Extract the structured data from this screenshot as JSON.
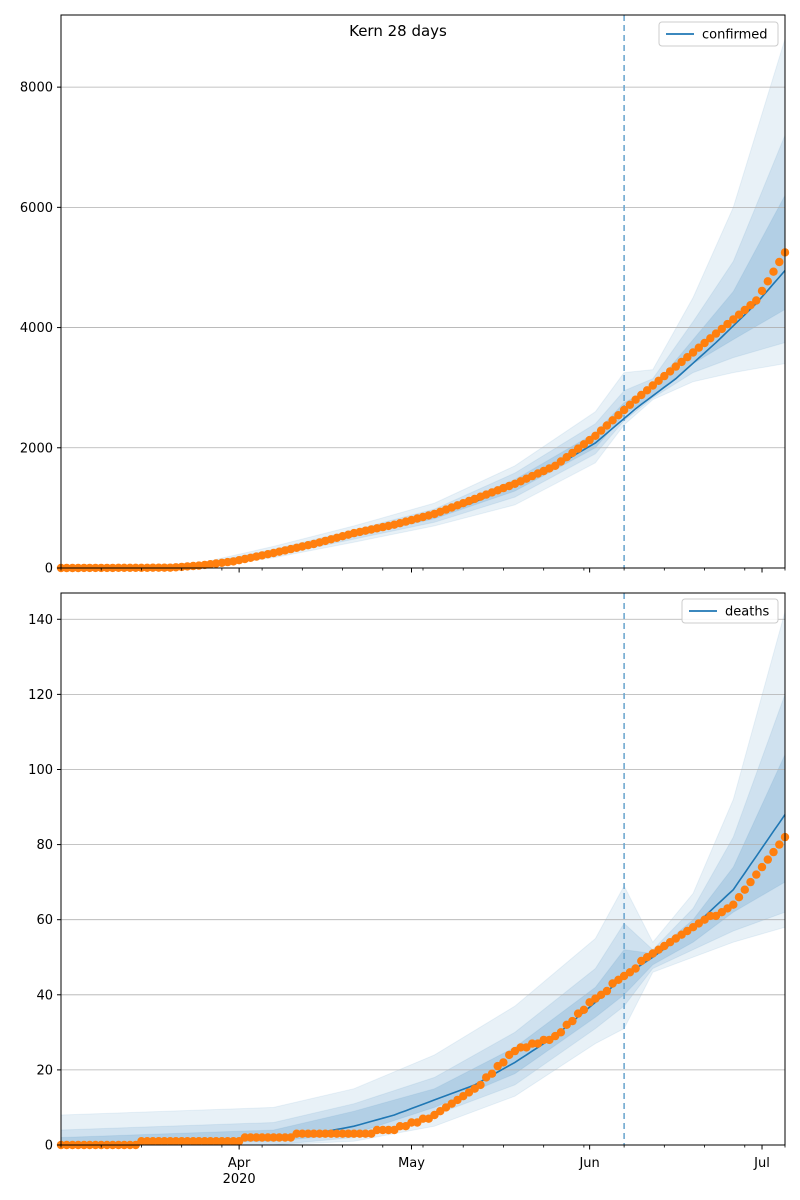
{
  "chart_data": [
    {
      "type": "line",
      "title": "Kern 28 days",
      "x_start": "2020-03-01",
      "x_end": "2020-07-05",
      "ylim": [
        0,
        9200
      ],
      "yticks": [
        0,
        2000,
        4000,
        6000,
        8000
      ],
      "grid": "y",
      "legend_position": "top-right",
      "forecast_start": "2020-06-07",
      "colors": {
        "model": "#1f77b4",
        "observed": "#ff7f0e",
        "band": "#1f77b4"
      },
      "series": [
        {
          "name": "confirmed",
          "kind": "model",
          "points": [
            [
              "2020-03-01",
              0
            ],
            [
              "2020-03-20",
              5
            ],
            [
              "2020-03-25",
              40
            ],
            [
              "2020-03-31",
              110
            ],
            [
              "2020-04-07",
              250
            ],
            [
              "2020-04-14",
              380
            ],
            [
              "2020-04-21",
              550
            ],
            [
              "2020-04-28",
              690
            ],
            [
              "2020-05-05",
              870
            ],
            [
              "2020-05-12",
              1100
            ],
            [
              "2020-05-19",
              1380
            ],
            [
              "2020-05-26",
              1690
            ],
            [
              "2020-06-02",
              2080
            ],
            [
              "2020-06-09",
              2650
            ],
            [
              "2020-06-16",
              3150
            ],
            [
              "2020-06-23",
              3750
            ],
            [
              "2020-06-30",
              4400
            ],
            [
              "2020-07-05",
              4950
            ]
          ]
        },
        {
          "kind": "observed",
          "points": [
            [
              "2020-03-01",
              0
            ],
            [
              "2020-03-20",
              5
            ],
            [
              "2020-03-25",
              40
            ],
            [
              "2020-03-31",
              110
            ],
            [
              "2020-04-07",
              250
            ],
            [
              "2020-04-14",
              400
            ],
            [
              "2020-04-21",
              580
            ],
            [
              "2020-04-28",
              720
            ],
            [
              "2020-05-05",
              900
            ],
            [
              "2020-05-12",
              1150
            ],
            [
              "2020-05-19",
              1400
            ],
            [
              "2020-05-26",
              1700
            ],
            [
              "2020-06-02",
              2200
            ],
            [
              "2020-06-09",
              2800
            ],
            [
              "2020-06-16",
              3350
            ],
            [
              "2020-06-23",
              3900
            ],
            [
              "2020-06-30",
              4450
            ],
            [
              "2020-07-05",
              5250
            ]
          ]
        }
      ],
      "bands": [
        {
          "level": "outer",
          "lower": [
            [
              "2020-03-01",
              0
            ],
            [
              "2020-03-25",
              15
            ],
            [
              "2020-04-07",
              170
            ],
            [
              "2020-04-21",
              430
            ],
            [
              "2020-05-05",
              700
            ],
            [
              "2020-05-19",
              1050
            ],
            [
              "2020-06-02",
              1750
            ],
            [
              "2020-06-07",
              2380
            ],
            [
              "2020-06-12",
              2800
            ],
            [
              "2020-06-19",
              3100
            ],
            [
              "2020-06-26",
              3250
            ],
            [
              "2020-07-05",
              3400
            ]
          ],
          "upper": [
            [
              "2020-03-01",
              10
            ],
            [
              "2020-03-25",
              80
            ],
            [
              "2020-04-07",
              360
            ],
            [
              "2020-04-21",
              700
            ],
            [
              "2020-05-05",
              1080
            ],
            [
              "2020-05-19",
              1700
            ],
            [
              "2020-06-02",
              2600
            ],
            [
              "2020-06-07",
              3250
            ],
            [
              "2020-06-12",
              3300
            ],
            [
              "2020-06-19",
              4500
            ],
            [
              "2020-06-26",
              6000
            ],
            [
              "2020-07-05",
              8800
            ]
          ]
        },
        {
          "level": "middle",
          "lower": [
            [
              "2020-03-01",
              0
            ],
            [
              "2020-03-25",
              25
            ],
            [
              "2020-04-07",
              200
            ],
            [
              "2020-04-21",
              480
            ],
            [
              "2020-05-05",
              760
            ],
            [
              "2020-05-19",
              1180
            ],
            [
              "2020-06-02",
              1900
            ],
            [
              "2020-06-07",
              2450
            ],
            [
              "2020-06-12",
              2830
            ],
            [
              "2020-06-19",
              3250
            ],
            [
              "2020-06-26",
              3500
            ],
            [
              "2020-07-05",
              3750
            ]
          ],
          "upper": [
            [
              "2020-03-01",
              5
            ],
            [
              "2020-03-25",
              60
            ],
            [
              "2020-04-07",
              310
            ],
            [
              "2020-04-21",
              630
            ],
            [
              "2020-05-05",
              980
            ],
            [
              "2020-05-19",
              1580
            ],
            [
              "2020-06-02",
              2400
            ],
            [
              "2020-06-07",
              2950
            ],
            [
              "2020-06-12",
              3150
            ],
            [
              "2020-06-19",
              4100
            ],
            [
              "2020-06-26",
              5100
            ],
            [
              "2020-07-05",
              7200
            ]
          ]
        },
        {
          "level": "inner",
          "lower": [
            [
              "2020-03-01",
              0
            ],
            [
              "2020-03-25",
              32
            ],
            [
              "2020-04-07",
              225
            ],
            [
              "2020-04-21",
              520
            ],
            [
              "2020-05-05",
              820
            ],
            [
              "2020-05-19",
              1280
            ],
            [
              "2020-06-02",
              2000
            ],
            [
              "2020-06-07",
              2550
            ],
            [
              "2020-06-12",
              2870
            ],
            [
              "2020-06-19",
              3400
            ],
            [
              "2020-06-26",
              3800
            ],
            [
              "2020-07-05",
              4300
            ]
          ],
          "upper": [
            [
              "2020-03-01",
              2
            ],
            [
              "2020-03-25",
              50
            ],
            [
              "2020-04-07",
              280
            ],
            [
              "2020-04-21",
              590
            ],
            [
              "2020-05-05",
              920
            ],
            [
              "2020-05-19",
              1470
            ],
            [
              "2020-06-02",
              2250
            ],
            [
              "2020-06-07",
              2750
            ],
            [
              "2020-06-12",
              3000
            ],
            [
              "2020-06-19",
              3800
            ],
            [
              "2020-06-26",
              4600
            ],
            [
              "2020-07-05",
              6200
            ]
          ]
        }
      ]
    },
    {
      "type": "line",
      "x_start": "2020-03-01",
      "x_end": "2020-07-05",
      "ylim": [
        0,
        147
      ],
      "yticks": [
        0,
        20,
        40,
        60,
        80,
        100,
        120,
        140
      ],
      "grid": "y",
      "legend_position": "top-right",
      "forecast_start": "2020-06-07",
      "colors": {
        "model": "#1f77b4",
        "observed": "#ff7f0e",
        "band": "#1f77b4"
      },
      "series": [
        {
          "name": "deaths",
          "kind": "model",
          "points": [
            [
              "2020-03-01",
              0
            ],
            [
              "2020-03-28",
              1
            ],
            [
              "2020-04-07",
              2
            ],
            [
              "2020-04-14",
              3
            ],
            [
              "2020-04-21",
              5
            ],
            [
              "2020-04-28",
              8
            ],
            [
              "2020-05-05",
              12
            ],
            [
              "2020-05-12",
              16
            ],
            [
              "2020-05-19",
              22
            ],
            [
              "2020-05-26",
              29
            ],
            [
              "2020-06-02",
              38
            ],
            [
              "2020-06-07",
              45
            ],
            [
              "2020-06-12",
              50
            ],
            [
              "2020-06-19",
              58
            ],
            [
              "2020-06-26",
              68
            ],
            [
              "2020-07-05",
              88
            ]
          ]
        },
        {
          "kind": "observed",
          "points": [
            [
              "2020-03-01",
              0
            ],
            [
              "2020-03-28",
              1
            ],
            [
              "2020-04-07",
              2
            ],
            [
              "2020-04-14",
              3
            ],
            [
              "2020-04-21",
              3
            ],
            [
              "2020-04-28",
              4
            ],
            [
              "2020-05-05",
              8
            ],
            [
              "2020-05-12",
              15
            ],
            [
              "2020-05-19",
              25
            ],
            [
              "2020-05-26",
              29
            ],
            [
              "2020-06-02",
              39
            ],
            [
              "2020-06-07",
              45
            ],
            [
              "2020-06-12",
              51
            ],
            [
              "2020-06-19",
              58
            ],
            [
              "2020-06-26",
              64
            ],
            [
              "2020-07-05",
              82
            ]
          ]
        }
      ],
      "bands": [
        {
          "level": "outer",
          "lower": [
            [
              "2020-03-01",
              0
            ],
            [
              "2020-04-07",
              0
            ],
            [
              "2020-04-21",
              1
            ],
            [
              "2020-05-05",
              5
            ],
            [
              "2020-05-19",
              13
            ],
            [
              "2020-06-02",
              27
            ],
            [
              "2020-06-07",
              31
            ],
            [
              "2020-06-12",
              46
            ],
            [
              "2020-06-19",
              50
            ],
            [
              "2020-06-26",
              54
            ],
            [
              "2020-07-05",
              58
            ]
          ],
          "upper": [
            [
              "2020-03-01",
              8
            ],
            [
              "2020-04-07",
              10
            ],
            [
              "2020-04-21",
              15
            ],
            [
              "2020-05-05",
              24
            ],
            [
              "2020-05-19",
              37
            ],
            [
              "2020-06-02",
              55
            ],
            [
              "2020-06-07",
              69
            ],
            [
              "2020-06-12",
              54
            ],
            [
              "2020-06-19",
              67
            ],
            [
              "2020-06-26",
              92
            ],
            [
              "2020-07-05",
              142
            ]
          ]
        },
        {
          "level": "middle",
          "lower": [
            [
              "2020-03-01",
              0
            ],
            [
              "2020-04-07",
              0
            ],
            [
              "2020-04-21",
              2
            ],
            [
              "2020-05-05",
              8
            ],
            [
              "2020-05-19",
              16
            ],
            [
              "2020-06-02",
              31
            ],
            [
              "2020-06-07",
              37
            ],
            [
              "2020-06-12",
              47
            ],
            [
              "2020-06-19",
              52
            ],
            [
              "2020-06-26",
              57
            ],
            [
              "2020-07-05",
              62
            ]
          ],
          "upper": [
            [
              "2020-03-01",
              4
            ],
            [
              "2020-04-07",
              6
            ],
            [
              "2020-04-21",
              11
            ],
            [
              "2020-05-05",
              18
            ],
            [
              "2020-05-19",
              30
            ],
            [
              "2020-06-02",
              47
            ],
            [
              "2020-06-07",
              59
            ],
            [
              "2020-06-12",
              52
            ],
            [
              "2020-06-19",
              63
            ],
            [
              "2020-06-26",
              82
            ],
            [
              "2020-07-05",
              120
            ]
          ]
        },
        {
          "level": "inner",
          "lower": [
            [
              "2020-03-01",
              0
            ],
            [
              "2020-04-07",
              1
            ],
            [
              "2020-04-21",
              3
            ],
            [
              "2020-05-05",
              10
            ],
            [
              "2020-05-19",
              19
            ],
            [
              "2020-06-02",
              34
            ],
            [
              "2020-06-07",
              40
            ],
            [
              "2020-06-12",
              48
            ],
            [
              "2020-06-19",
              54
            ],
            [
              "2020-06-26",
              62
            ],
            [
              "2020-07-05",
              70
            ]
          ],
          "upper": [
            [
              "2020-03-01",
              2
            ],
            [
              "2020-04-07",
              4
            ],
            [
              "2020-04-21",
              9
            ],
            [
              "2020-05-05",
              15
            ],
            [
              "2020-05-19",
              26
            ],
            [
              "2020-06-02",
              42
            ],
            [
              "2020-06-07",
              52
            ],
            [
              "2020-06-12",
              51
            ],
            [
              "2020-06-19",
              60
            ],
            [
              "2020-06-26",
              74
            ],
            [
              "2020-07-05",
              104
            ]
          ]
        }
      ]
    }
  ],
  "x_axis": {
    "tick_labels": [
      {
        "date": "2020-04-01",
        "label": "Apr"
      },
      {
        "date": "2020-05-01",
        "label": "May"
      },
      {
        "date": "2020-06-01",
        "label": "Jun"
      },
      {
        "date": "2020-07-01",
        "label": "Jul"
      }
    ],
    "year_label": "2020"
  }
}
